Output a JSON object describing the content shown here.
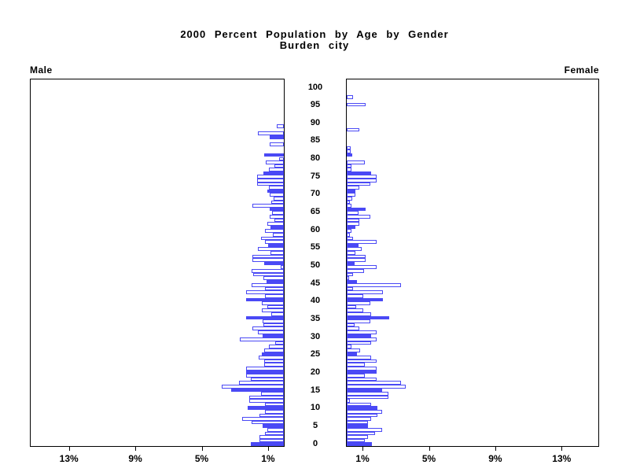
{
  "title": {
    "line1": "2000 Percent Population by Age by Gender",
    "line2": "Burden city"
  },
  "panel_labels": {
    "male": "Male",
    "female": "Female"
  },
  "chart_data": {
    "type": "bar",
    "subtype": "population-pyramid",
    "title": "2000 Percent Population by Age by Gender",
    "subtitle": "Burden city",
    "legend": "none",
    "grid": false,
    "bar_style_note": "one horizontal bar per single year of age; bars at ages that are multiples of 5 are solid filled, all others are white with blue outline",
    "colors": {
      "bar_outline": "#4a49f5",
      "bar_solid_fill": "#4a49f5",
      "bar_empty_fill": "#ffffff",
      "axis": "#000000",
      "text": "#000000",
      "background": "#ffffff"
    },
    "x_axis": {
      "unit": "percent of population",
      "range_pct": [
        0,
        15.3
      ],
      "tick_values": [
        1,
        5,
        9,
        13
      ],
      "tick_labels": [
        "1%",
        "5%",
        "9%",
        "13%"
      ],
      "orientation": "mirrored, zero at the center between the two panels"
    },
    "age_axis": {
      "min": 0,
      "max": 100,
      "label_step": 5,
      "tick_labels": [
        "0",
        "5",
        "10",
        "15",
        "20",
        "25",
        "30",
        "35",
        "40",
        "45",
        "50",
        "55",
        "60",
        "65",
        "70",
        "75",
        "80",
        "85",
        "90",
        "95",
        "100"
      ],
      "position": "center gap between panels"
    },
    "series": [
      {
        "name": "Male",
        "side": "left",
        "values_pct_by_age": [
          2.0,
          1.45,
          1.45,
          1.15,
          1.0,
          1.3,
          1.95,
          2.5,
          1.45,
          1.15,
          2.2,
          1.15,
          2.1,
          2.1,
          1.4,
          3.2,
          3.75,
          2.7,
          2.0,
          2.3,
          2.3,
          2.3,
          1.2,
          1.2,
          1.5,
          1.35,
          1.2,
          0.9,
          0.5,
          2.65,
          1.3,
          1.55,
          1.9,
          1.25,
          1.3,
          2.3,
          0.75,
          1.35,
          1.0,
          1.35,
          2.3,
          1.15,
          2.3,
          1.15,
          1.95,
          1.05,
          1.25,
          1.85,
          1.95,
          0.2,
          1.2,
          1.9,
          1.9,
          0.8,
          1.55,
          0.95,
          1.15,
          1.4,
          0.65,
          1.15,
          0.8,
          1.0,
          0.55,
          0.85,
          0.7,
          0.85,
          1.9,
          0.75,
          0.6,
          0.85,
          1.0,
          0.9,
          1.6,
          1.6,
          1.6,
          1.25,
          0.9,
          0.55,
          1.1,
          0.3,
          1.2,
          0,
          0,
          0.85,
          0,
          0.85,
          1.55,
          0,
          0.45,
          0,
          0,
          0,
          0,
          0,
          0,
          0,
          0,
          0,
          0,
          0,
          0
        ]
      },
      {
        "name": "Female",
        "side": "right",
        "values_pct_by_age": [
          1.5,
          1.1,
          1.3,
          1.7,
          2.15,
          1.3,
          1.3,
          1.45,
          1.85,
          2.15,
          1.85,
          1.45,
          0.2,
          2.5,
          2.5,
          2.15,
          3.55,
          3.25,
          1.8,
          1.1,
          1.8,
          1.8,
          1.1,
          1.8,
          1.45,
          0.6,
          0.8,
          0.3,
          1.45,
          1.8,
          1.45,
          1.8,
          0.75,
          0.45,
          1.4,
          2.55,
          1.45,
          1.0,
          0.55,
          1.4,
          2.2,
          1.0,
          2.2,
          0.4,
          3.25,
          0.6,
          0.15,
          0.4,
          1.05,
          1.8,
          0.45,
          1.15,
          1.15,
          0.5,
          0.9,
          0.7,
          1.8,
          0.4,
          0.2,
          0.3,
          0.5,
          0.75,
          0.75,
          1.4,
          0.7,
          1.15,
          0.3,
          0.2,
          0.35,
          0.5,
          0.5,
          0.75,
          1.4,
          1.8,
          1.8,
          1.45,
          0.3,
          0.3,
          1.1,
          0,
          0.35,
          0.25,
          0.25,
          0,
          0,
          0,
          0,
          0.75,
          0,
          0,
          0,
          0,
          0,
          0,
          1.15,
          0,
          0.4,
          0,
          0,
          0,
          0
        ]
      }
    ]
  }
}
